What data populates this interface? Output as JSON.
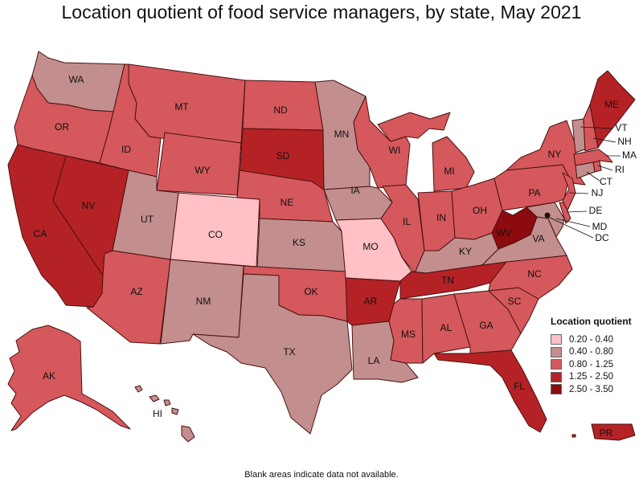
{
  "title": "Location quotient of food service managers, by state, May 2021",
  "footnote": "Blank areas indicate data not available.",
  "colors": {
    "c1": "#ffc0c6",
    "c2": "#c28e8e",
    "c3": "#d5585c",
    "c4": "#b52226",
    "c5": "#8c0b0f"
  },
  "legend": {
    "title": "Location quotient",
    "items": [
      {
        "label": "0.20 - 0.40",
        "color": "#ffc0c6"
      },
      {
        "label": "0.40 - 0.80",
        "color": "#c28e8e"
      },
      {
        "label": "0.80 - 1.25",
        "color": "#d5585c"
      },
      {
        "label": "1.25 - 2.50",
        "color": "#b52226"
      },
      {
        "label": "2.50 - 3.50",
        "color": "#8c0b0f"
      }
    ]
  },
  "states": {
    "WA": {
      "label": "WA",
      "range": "0.40 - 0.80"
    },
    "OR": {
      "label": "OR",
      "range": "0.80 - 1.25"
    },
    "CA": {
      "label": "CA",
      "range": "1.25 - 2.50"
    },
    "NV": {
      "label": "NV",
      "range": "1.25 - 2.50"
    },
    "ID": {
      "label": "ID",
      "range": "0.80 - 1.25"
    },
    "MT": {
      "label": "MT",
      "range": "0.80 - 1.25"
    },
    "WY": {
      "label": "WY",
      "range": "0.80 - 1.25"
    },
    "UT": {
      "label": "UT",
      "range": "0.40 - 0.80"
    },
    "CO": {
      "label": "CO",
      "range": "0.20 - 0.40"
    },
    "AZ": {
      "label": "AZ",
      "range": "0.80 - 1.25"
    },
    "NM": {
      "label": "NM",
      "range": "0.40 - 0.80"
    },
    "ND": {
      "label": "ND",
      "range": "0.80 - 1.25"
    },
    "SD": {
      "label": "SD",
      "range": "1.25 - 2.50"
    },
    "NE": {
      "label": "NE",
      "range": "0.80 - 1.25"
    },
    "KS": {
      "label": "KS",
      "range": "0.40 - 0.80"
    },
    "OK": {
      "label": "OK",
      "range": "0.80 - 1.25"
    },
    "TX": {
      "label": "TX",
      "range": "0.40 - 0.80"
    },
    "MN": {
      "label": "MN",
      "range": "0.40 - 0.80"
    },
    "IA": {
      "label": "IA",
      "range": "0.40 - 0.80"
    },
    "MO": {
      "label": "MO",
      "range": "0.20 - 0.40"
    },
    "AR": {
      "label": "AR",
      "range": "1.25 - 2.50"
    },
    "LA": {
      "label": "LA",
      "range": "0.40 - 0.80"
    },
    "WI": {
      "label": "WI",
      "range": "0.80 - 1.25"
    },
    "IL": {
      "label": "IL",
      "range": "0.80 - 1.25"
    },
    "MI": {
      "label": "MI",
      "range": "0.80 - 1.25"
    },
    "IN": {
      "label": "IN",
      "range": "0.80 - 1.25"
    },
    "OH": {
      "label": "OH",
      "range": "0.80 - 1.25"
    },
    "KY": {
      "label": "KY",
      "range": "0.40 - 0.80"
    },
    "TN": {
      "label": "TN",
      "range": "1.25 - 2.50"
    },
    "MS": {
      "label": "MS",
      "range": "0.80 - 1.25"
    },
    "AL": {
      "label": "AL",
      "range": "0.80 - 1.25"
    },
    "GA": {
      "label": "GA",
      "range": "0.80 - 1.25"
    },
    "FL": {
      "label": "FL",
      "range": "1.25 - 2.50"
    },
    "SC": {
      "label": "SC",
      "range": "0.80 - 1.25"
    },
    "NC": {
      "label": "NC",
      "range": "0.80 - 1.25"
    },
    "VA": {
      "label": "VA",
      "range": "0.40 - 0.80"
    },
    "WV": {
      "label": "WV",
      "range": "2.50 - 3.50"
    },
    "PA": {
      "label": "PA",
      "range": "0.80 - 1.25"
    },
    "NY": {
      "label": "NY",
      "range": "0.80 - 1.25"
    },
    "ME": {
      "label": "ME",
      "range": "1.25 - 2.50"
    },
    "VT": {
      "label": "VT",
      "range": "0.40 - 0.80"
    },
    "NH": {
      "label": "NH",
      "range": "0.80 - 1.25"
    },
    "MA": {
      "label": "MA",
      "range": "0.80 - 1.25"
    },
    "RI": {
      "label": "RI",
      "range": "0.80 - 1.25"
    },
    "CT": {
      "label": "CT",
      "range": "0.40 - 0.80"
    },
    "NJ": {
      "label": "NJ",
      "range": "0.80 - 1.25"
    },
    "DE": {
      "label": "DE",
      "range": "0.80 - 1.25"
    },
    "MD": {
      "label": "MD",
      "range": "0.40 - 0.80"
    },
    "DC": {
      "label": "DC",
      "range": "0.40 - 0.80"
    },
    "AK": {
      "label": "AK",
      "range": "0.80 - 1.25"
    },
    "HI": {
      "label": "HI",
      "range": "0.40 - 0.80"
    },
    "PR": {
      "label": "PR",
      "range": "1.25 - 2.50"
    }
  }
}
